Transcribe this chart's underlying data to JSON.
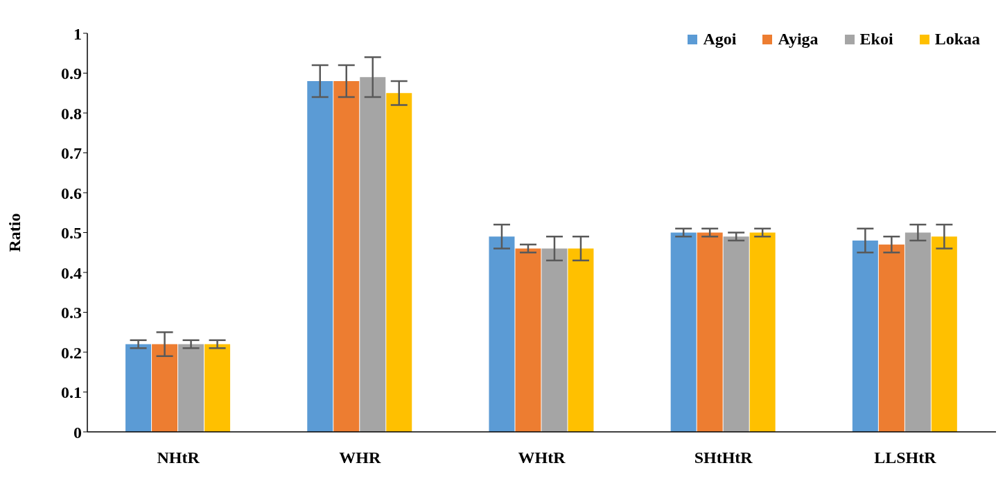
{
  "chart_data": {
    "type": "bar",
    "ylabel": "Ratio",
    "categories": [
      "NHtR",
      "WHR",
      "WHtR",
      "SHtHtR",
      "LLSHtR"
    ],
    "series": [
      {
        "name": "Agoi",
        "color": "#5b9bd5",
        "values": [
          0.22,
          0.88,
          0.49,
          0.5,
          0.48
        ],
        "errors": [
          0.01,
          0.04,
          0.03,
          0.01,
          0.03
        ]
      },
      {
        "name": "Ayiga",
        "color": "#ed7d31",
        "values": [
          0.22,
          0.88,
          0.46,
          0.5,
          0.47
        ],
        "errors": [
          0.03,
          0.04,
          0.01,
          0.01,
          0.02
        ]
      },
      {
        "name": "Ekoi",
        "color": "#a5a5a5",
        "values": [
          0.22,
          0.89,
          0.46,
          0.49,
          0.5
        ],
        "errors": [
          0.01,
          0.05,
          0.03,
          0.01,
          0.02
        ]
      },
      {
        "name": "Lokaa",
        "color": "#ffc000",
        "values": [
          0.22,
          0.85,
          0.46,
          0.5,
          0.49
        ],
        "errors": [
          0.01,
          0.03,
          0.03,
          0.01,
          0.03
        ]
      }
    ],
    "ylim": [
      0,
      1
    ],
    "yticks": [
      0,
      0.1,
      0.2,
      0.3,
      0.4,
      0.5,
      0.6,
      0.7,
      0.8,
      0.9,
      1
    ],
    "grid": false,
    "legend": "top right"
  }
}
